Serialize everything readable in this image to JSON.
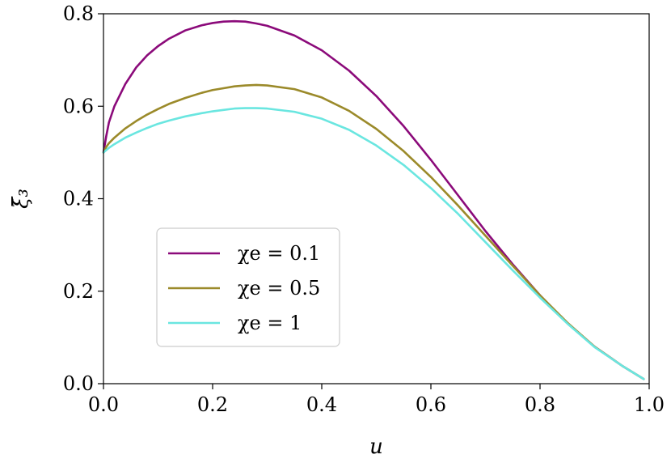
{
  "chart_data": {
    "type": "line",
    "title": "",
    "xlabel": "u",
    "ylabel": "ξ̄₃",
    "xlim": [
      0.0,
      1.0
    ],
    "ylim": [
      0.0,
      0.8
    ],
    "x_ticks": [
      "0.0",
      "0.2",
      "0.4",
      "0.6",
      "0.8",
      "1.0"
    ],
    "y_ticks": [
      "0.0",
      "0.2",
      "0.4",
      "0.6",
      "0.8"
    ],
    "grid": false,
    "legend_position": "lower-left",
    "series": [
      {
        "name": "χe = 0.1",
        "legend_label": "χe = 0.1",
        "color": "#8b0a7a",
        "x": [
          0.0,
          0.005,
          0.01,
          0.02,
          0.04,
          0.06,
          0.08,
          0.1,
          0.12,
          0.15,
          0.18,
          0.2,
          0.22,
          0.24,
          0.26,
          0.28,
          0.3,
          0.35,
          0.4,
          0.45,
          0.5,
          0.55,
          0.6,
          0.65,
          0.7,
          0.75,
          0.8,
          0.85,
          0.9,
          0.95,
          0.99
        ],
        "y": [
          0.5,
          0.535,
          0.565,
          0.6,
          0.648,
          0.684,
          0.71,
          0.73,
          0.746,
          0.764,
          0.775,
          0.78,
          0.783,
          0.784,
          0.783,
          0.779,
          0.774,
          0.753,
          0.721,
          0.677,
          0.622,
          0.557,
          0.484,
          0.407,
          0.33,
          0.258,
          0.191,
          0.131,
          0.08,
          0.039,
          0.01
        ]
      },
      {
        "name": "χe = 0.5",
        "legend_label": "χe = 0.5",
        "color": "#9b8a2a",
        "x": [
          0.0,
          0.005,
          0.01,
          0.02,
          0.04,
          0.06,
          0.08,
          0.1,
          0.12,
          0.15,
          0.18,
          0.2,
          0.22,
          0.24,
          0.26,
          0.28,
          0.3,
          0.35,
          0.4,
          0.45,
          0.5,
          0.55,
          0.6,
          0.65,
          0.7,
          0.75,
          0.8,
          0.85,
          0.9,
          0.95,
          0.99
        ],
        "y": [
          0.5,
          0.512,
          0.52,
          0.532,
          0.552,
          0.568,
          0.582,
          0.594,
          0.605,
          0.618,
          0.629,
          0.635,
          0.639,
          0.643,
          0.645,
          0.646,
          0.645,
          0.637,
          0.619,
          0.59,
          0.551,
          0.503,
          0.447,
          0.385,
          0.32,
          0.255,
          0.191,
          0.132,
          0.08,
          0.039,
          0.01
        ]
      },
      {
        "name": "χe = 1",
        "legend_label": "χe = 1",
        "color": "#6ae6e0",
        "x": [
          0.0,
          0.005,
          0.01,
          0.02,
          0.04,
          0.06,
          0.08,
          0.1,
          0.12,
          0.15,
          0.18,
          0.2,
          0.22,
          0.24,
          0.26,
          0.28,
          0.3,
          0.35,
          0.4,
          0.45,
          0.5,
          0.55,
          0.6,
          0.65,
          0.7,
          0.75,
          0.8,
          0.85,
          0.9,
          0.95,
          0.99
        ],
        "y": [
          0.5,
          0.505,
          0.51,
          0.518,
          0.532,
          0.543,
          0.553,
          0.562,
          0.569,
          0.578,
          0.585,
          0.589,
          0.592,
          0.595,
          0.596,
          0.596,
          0.595,
          0.588,
          0.573,
          0.549,
          0.515,
          0.473,
          0.423,
          0.367,
          0.306,
          0.245,
          0.186,
          0.13,
          0.079,
          0.039,
          0.01
        ]
      }
    ]
  }
}
